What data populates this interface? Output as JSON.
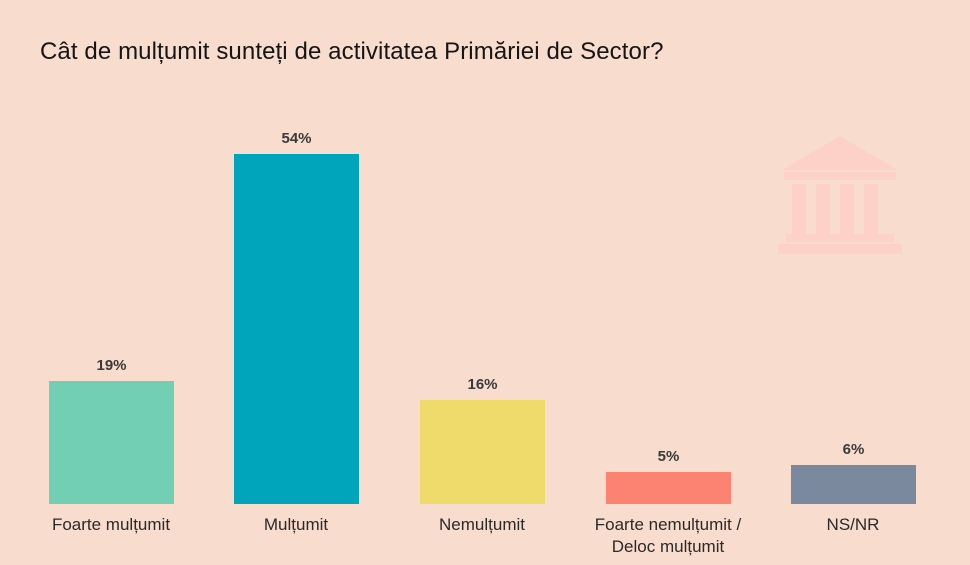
{
  "title": "Cât de mulțumit sunteți de activitatea Primăriei de Sector?",
  "icon": "government-building-icon",
  "chart_data": {
    "type": "bar",
    "title": "Cât de mulțumit sunteți de activitatea Primăriei de Sector?",
    "xlabel": "",
    "ylabel": "",
    "ylim": [
      0,
      54
    ],
    "grid": false,
    "legend": null,
    "categories": [
      "Foarte mulțumit",
      "Mulțumit",
      "Nemulțumit",
      "Foarte nemulțumit / Deloc mulțumit",
      "NS/NR"
    ],
    "values": [
      19,
      54,
      16,
      5,
      6
    ],
    "value_labels": [
      "19%",
      "54%",
      "16%",
      "5%",
      "6%"
    ],
    "colors": [
      "#72cfb4",
      "#00a5bc",
      "#efdb6c",
      "#fc8371",
      "#7a899e"
    ]
  },
  "bars": [
    {
      "label_line1": "Foarte mulțumit",
      "label_line2": "",
      "value": "19%"
    },
    {
      "label_line1": "Mulțumit",
      "label_line2": "",
      "value": "54%"
    },
    {
      "label_line1": "Nemulțumit",
      "label_line2": "",
      "value": "16%"
    },
    {
      "label_line1": "Foarte nemulțumit /",
      "label_line2": "Deloc mulțumit",
      "value": "5%"
    },
    {
      "label_line1": "NS/NR",
      "label_line2": "",
      "value": "6%"
    }
  ]
}
